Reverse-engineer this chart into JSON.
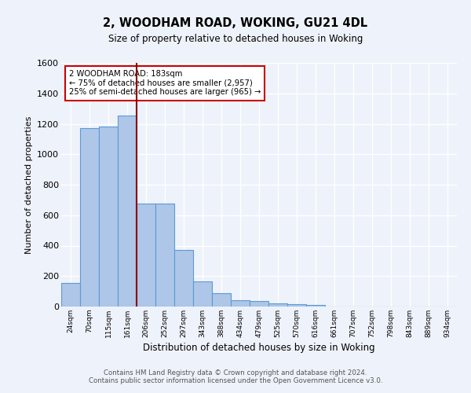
{
  "title": "2, WOODHAM ROAD, WOKING, GU21 4DL",
  "subtitle": "Size of property relative to detached houses in Woking",
  "xlabel": "Distribution of detached houses by size in Woking",
  "ylabel": "Number of detached properties",
  "footer_line1": "Contains HM Land Registry data © Crown copyright and database right 2024.",
  "footer_line2": "Contains public sector information licensed under the Open Government Licence v3.0.",
  "categories": [
    "24sqm",
    "70sqm",
    "115sqm",
    "161sqm",
    "206sqm",
    "252sqm",
    "297sqm",
    "343sqm",
    "388sqm",
    "434sqm",
    "479sqm",
    "525sqm",
    "570sqm",
    "616sqm",
    "661sqm",
    "707sqm",
    "752sqm",
    "798sqm",
    "843sqm",
    "889sqm",
    "934sqm"
  ],
  "values": [
    155,
    1170,
    1180,
    1255,
    675,
    675,
    370,
    165,
    90,
    40,
    35,
    20,
    15,
    10,
    0,
    0,
    0,
    0,
    0,
    0,
    0
  ],
  "bar_color": "#aec6e8",
  "bar_edge_color": "#5b9bd5",
  "bg_color": "#eef2fa",
  "grid_color": "#ffffff",
  "vline_x": 3.5,
  "vline_color": "#8b0000",
  "annotation_line1": "2 WOODHAM ROAD: 183sqm",
  "annotation_line2": "← 75% of detached houses are smaller (2,957)",
  "annotation_line3": "25% of semi-detached houses are larger (965) →",
  "annotation_box_color": "#ffffff",
  "annotation_box_edge": "#cc0000",
  "ylim": [
    0,
    1600
  ],
  "yticks": [
    0,
    200,
    400,
    600,
    800,
    1000,
    1200,
    1400,
    1600
  ]
}
